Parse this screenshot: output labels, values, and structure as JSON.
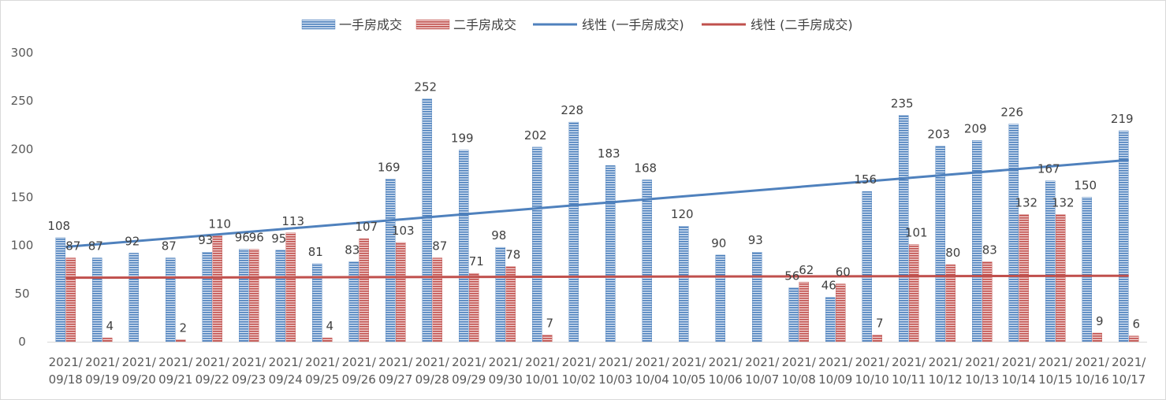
{
  "chart_data": {
    "type": "bar",
    "title": "",
    "xlabel": "",
    "ylabel": "",
    "ylim": [
      0,
      300
    ],
    "yticks": [
      0,
      50,
      100,
      150,
      200,
      250,
      300
    ],
    "grid": false,
    "legend_position": "top",
    "categories": [
      "2021/09/18",
      "2021/09/19",
      "2021/09/20",
      "2021/09/21",
      "2021/09/22",
      "2021/09/23",
      "2021/09/24",
      "2021/09/25",
      "2021/09/26",
      "2021/09/27",
      "2021/09/28",
      "2021/09/29",
      "2021/09/30",
      "2021/10/01",
      "2021/10/02",
      "2021/10/03",
      "2021/10/04",
      "2021/10/05",
      "2021/10/06",
      "2021/10/07",
      "2021/10/08",
      "2021/10/09",
      "2021/10/10",
      "2021/10/11",
      "2021/10/12",
      "2021/10/13",
      "2021/10/14",
      "2021/10/15",
      "2021/10/16",
      "2021/10/17"
    ],
    "series": [
      {
        "name": "一手房成交",
        "color": "#4a7ebb",
        "values": [
          108,
          87,
          92,
          87,
          93,
          96,
          95,
          81,
          83,
          169,
          252,
          199,
          98,
          202,
          228,
          183,
          168,
          120,
          90,
          93,
          56,
          46,
          156,
          235,
          203,
          209,
          226,
          167,
          150,
          219
        ]
      },
      {
        "name": "二手房成交",
        "color": "#c0504d",
        "values": [
          87,
          4,
          null,
          2,
          110,
          96,
          113,
          4,
          107,
          103,
          87,
          71,
          78,
          7,
          null,
          null,
          null,
          null,
          null,
          null,
          62,
          60,
          7,
          101,
          80,
          83,
          132,
          132,
          9,
          6
        ]
      }
    ],
    "trendlines": [
      {
        "name": "线性 (一手房成交)",
        "color": "#4f81bd",
        "type": "linear",
        "start_value": 98.5,
        "end_value": 188.7
      },
      {
        "name": "线性 (二手房成交)",
        "color": "#c0504d",
        "type": "linear",
        "start_value": 66.5,
        "end_value": 68.5
      }
    ]
  }
}
